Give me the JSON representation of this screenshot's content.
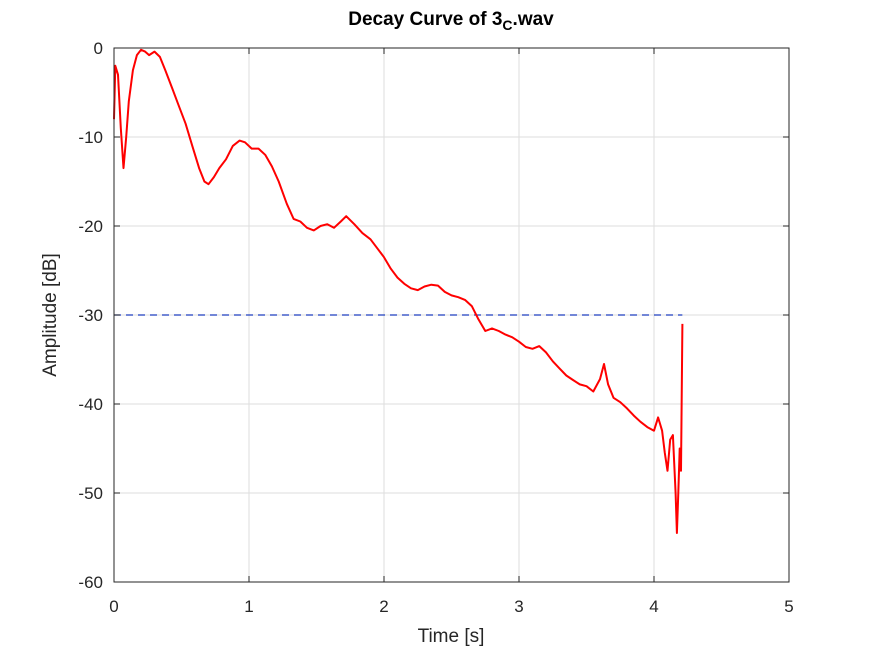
{
  "chart_data": {
    "type": "line",
    "title": "Decay Curve of 3",
    "title_subscript": "C",
    "title_suffix": ".wav",
    "xlabel": "Time [s]",
    "ylabel": "Amplitude [dB]",
    "xlim": [
      0,
      5
    ],
    "ylim": [
      -60,
      0
    ],
    "xticks": [
      "0",
      "1",
      "2",
      "3",
      "4",
      "5"
    ],
    "yticks": [
      "0",
      "-10",
      "-20",
      "-30",
      "-40",
      "-50",
      "-60"
    ],
    "grid": true,
    "colors": {
      "curve": "#ff0000",
      "reference": "#1f3fbf",
      "grid": "#dddddd",
      "axes": "#262626"
    },
    "series": [
      {
        "points": [
          [
            0.0,
            -8
          ],
          [
            0.01,
            -2
          ],
          [
            0.03,
            -3
          ],
          [
            0.05,
            -9
          ],
          [
            0.07,
            -13.5
          ],
          [
            0.09,
            -10
          ],
          [
            0.11,
            -6
          ],
          [
            0.14,
            -2.5
          ],
          [
            0.17,
            -0.8
          ],
          [
            0.2,
            -0.2
          ],
          [
            0.23,
            -0.4
          ],
          [
            0.26,
            -0.8
          ],
          [
            0.3,
            -0.4
          ],
          [
            0.34,
            -1.0
          ],
          [
            0.38,
            -2.5
          ],
          [
            0.43,
            -4.5
          ],
          [
            0.48,
            -6.5
          ],
          [
            0.53,
            -8.5
          ],
          [
            0.58,
            -11.0
          ],
          [
            0.63,
            -13.5
          ],
          [
            0.67,
            -15.0
          ],
          [
            0.7,
            -15.3
          ],
          [
            0.74,
            -14.5
          ],
          [
            0.78,
            -13.5
          ],
          [
            0.83,
            -12.5
          ],
          [
            0.88,
            -11.0
          ],
          [
            0.93,
            -10.4
          ],
          [
            0.97,
            -10.6
          ],
          [
            1.02,
            -11.3
          ],
          [
            1.07,
            -11.3
          ],
          [
            1.12,
            -12.0
          ],
          [
            1.17,
            -13.3
          ],
          [
            1.22,
            -15.0
          ],
          [
            1.28,
            -17.5
          ],
          [
            1.33,
            -19.2
          ],
          [
            1.38,
            -19.5
          ],
          [
            1.43,
            -20.2
          ],
          [
            1.48,
            -20.5
          ],
          [
            1.53,
            -20.0
          ],
          [
            1.58,
            -19.8
          ],
          [
            1.63,
            -20.2
          ],
          [
            1.68,
            -19.5
          ],
          [
            1.72,
            -18.9
          ],
          [
            1.78,
            -19.8
          ],
          [
            1.84,
            -20.8
          ],
          [
            1.9,
            -21.5
          ],
          [
            1.95,
            -22.5
          ],
          [
            2.0,
            -23.5
          ],
          [
            2.05,
            -24.8
          ],
          [
            2.1,
            -25.8
          ],
          [
            2.15,
            -26.5
          ],
          [
            2.2,
            -27.0
          ],
          [
            2.25,
            -27.2
          ],
          [
            2.3,
            -26.8
          ],
          [
            2.35,
            -26.6
          ],
          [
            2.4,
            -26.7
          ],
          [
            2.45,
            -27.4
          ],
          [
            2.5,
            -27.8
          ],
          [
            2.55,
            -28.0
          ],
          [
            2.6,
            -28.3
          ],
          [
            2.65,
            -29.0
          ],
          [
            2.7,
            -30.5
          ],
          [
            2.75,
            -31.8
          ],
          [
            2.8,
            -31.5
          ],
          [
            2.85,
            -31.8
          ],
          [
            2.9,
            -32.2
          ],
          [
            2.95,
            -32.5
          ],
          [
            3.0,
            -33.0
          ],
          [
            3.05,
            -33.6
          ],
          [
            3.1,
            -33.8
          ],
          [
            3.15,
            -33.5
          ],
          [
            3.2,
            -34.2
          ],
          [
            3.25,
            -35.2
          ],
          [
            3.3,
            -36.0
          ],
          [
            3.35,
            -36.8
          ],
          [
            3.4,
            -37.3
          ],
          [
            3.45,
            -37.8
          ],
          [
            3.5,
            -38.0
          ],
          [
            3.55,
            -38.6
          ],
          [
            3.6,
            -37.2
          ],
          [
            3.63,
            -35.5
          ],
          [
            3.66,
            -37.8
          ],
          [
            3.7,
            -39.3
          ],
          [
            3.75,
            -39.8
          ],
          [
            3.8,
            -40.5
          ],
          [
            3.85,
            -41.3
          ],
          [
            3.9,
            -42.0
          ],
          [
            3.95,
            -42.6
          ],
          [
            4.0,
            -43.0
          ],
          [
            4.03,
            -41.5
          ],
          [
            4.06,
            -43.0
          ],
          [
            4.08,
            -45.5
          ],
          [
            4.1,
            -47.5
          ],
          [
            4.12,
            -44.0
          ],
          [
            4.14,
            -43.5
          ],
          [
            4.16,
            -50.0
          ],
          [
            4.17,
            -54.5
          ],
          [
            4.18,
            -50.0
          ],
          [
            4.19,
            -45.0
          ],
          [
            4.2,
            -47.5
          ],
          [
            4.21,
            -31.0
          ]
        ]
      }
    ],
    "reference_line": {
      "y": -30,
      "x_start": 0,
      "x_end": 4.21,
      "style": "dashed"
    }
  }
}
